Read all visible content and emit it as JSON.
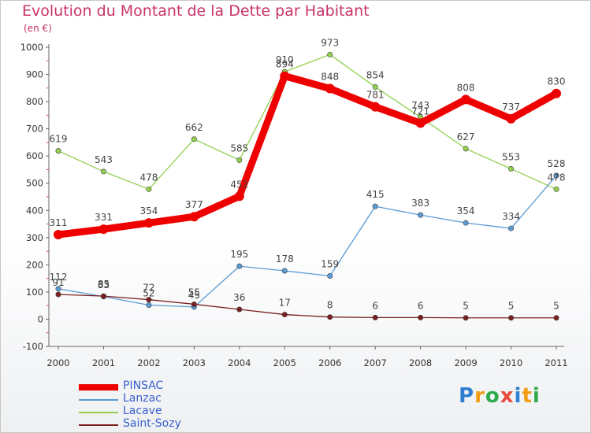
{
  "chart_data": {
    "type": "line",
    "title": "Evolution du Montant de la Dette par Habitant",
    "subtitle": "(en €)",
    "x": [
      "2000",
      "2001",
      "2002",
      "2003",
      "2004",
      "2005",
      "2006",
      "2007",
      "2008",
      "2009",
      "2010",
      "2011"
    ],
    "ylim": [
      -100,
      1000
    ],
    "yticks": [
      "-100",
      "0",
      "100",
      "200",
      "300",
      "400",
      "500",
      "600",
      "700",
      "800",
      "900",
      "1000"
    ],
    "grid": false,
    "legend_position": "bottom-left",
    "series": [
      {
        "name": "PINSAC",
        "color": "#ee0000",
        "values": [
          311,
          331,
          354,
          377,
          452,
          894,
          848,
          781,
          721,
          808,
          737,
          830
        ],
        "labels": [
          "311",
          "331",
          "354",
          "377",
          "452",
          "894",
          "848",
          "781",
          "721",
          "808",
          "737",
          "830"
        ]
      },
      {
        "name": "Lanzac",
        "color": "#5b9bd5",
        "values": [
          112,
          83,
          52,
          45,
          195,
          178,
          159,
          415,
          383,
          354,
          334,
          528
        ],
        "labels": [
          "112",
          "83",
          "52",
          "45",
          "195",
          "178",
          "159",
          "415",
          "383",
          "354",
          "334",
          "528"
        ]
      },
      {
        "name": "Lacave",
        "color": "#92d050",
        "values": [
          619,
          543,
          478,
          662,
          585,
          910,
          973,
          854,
          743,
          627,
          553,
          478
        ],
        "labels": [
          "619",
          "543",
          "478",
          "662",
          "585",
          "910",
          "973",
          "854",
          "743",
          "627",
          "553",
          "478"
        ]
      },
      {
        "name": "Saint-Sozy",
        "color": "#7b1f1f",
        "values": [
          91,
          85,
          72,
          55,
          36,
          17,
          8,
          6,
          6,
          5,
          5,
          5
        ],
        "labels": [
          "91",
          "85",
          "72",
          "55",
          "36",
          "17",
          "8",
          "6",
          "6",
          "5",
          "5",
          "5"
        ]
      }
    ]
  },
  "branding": {
    "logo_letters": [
      "P",
      "r",
      "o",
      "x",
      "i",
      "t",
      "i"
    ],
    "logo_colors": [
      "#2e7fd1",
      "#f39c12",
      "#2eaa4a",
      "#e74c3c",
      "#2e7fd1",
      "#f39c12",
      "#2eaa4a"
    ]
  }
}
